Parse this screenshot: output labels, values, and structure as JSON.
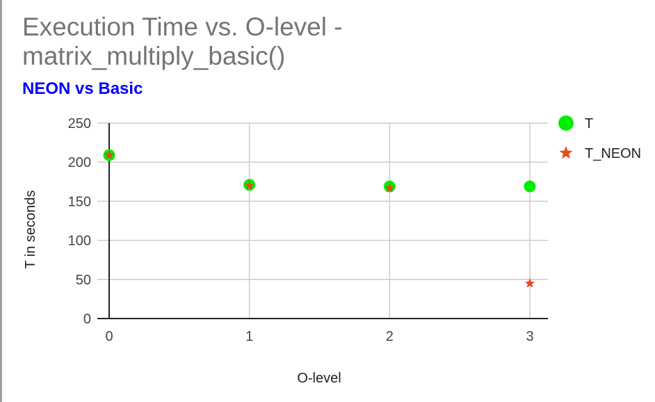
{
  "chart_data": {
    "type": "scatter",
    "title": "Execution Time vs. O-level - matrix_multiply_basic()",
    "subtitle": "NEON vs Basic",
    "xlabel": "O-level",
    "ylabel": "T in seconds",
    "x": [
      0,
      1,
      2,
      3
    ],
    "x_ticks": [
      "0",
      "1",
      "2",
      "3"
    ],
    "y_ticks": [
      "0",
      "50",
      "100",
      "150",
      "200",
      "250"
    ],
    "xlim": [
      0,
      3
    ],
    "ylim": [
      0,
      250
    ],
    "grid": true,
    "legend_position": "right",
    "series": [
      {
        "name": "T",
        "values": [
          209,
          171,
          169,
          169
        ],
        "marker": "circle",
        "color": "#00ee00"
      },
      {
        "name": "T_NEON",
        "values": [
          209,
          170,
          167,
          45
        ],
        "marker": "star",
        "color": "#e64a19"
      }
    ]
  }
}
